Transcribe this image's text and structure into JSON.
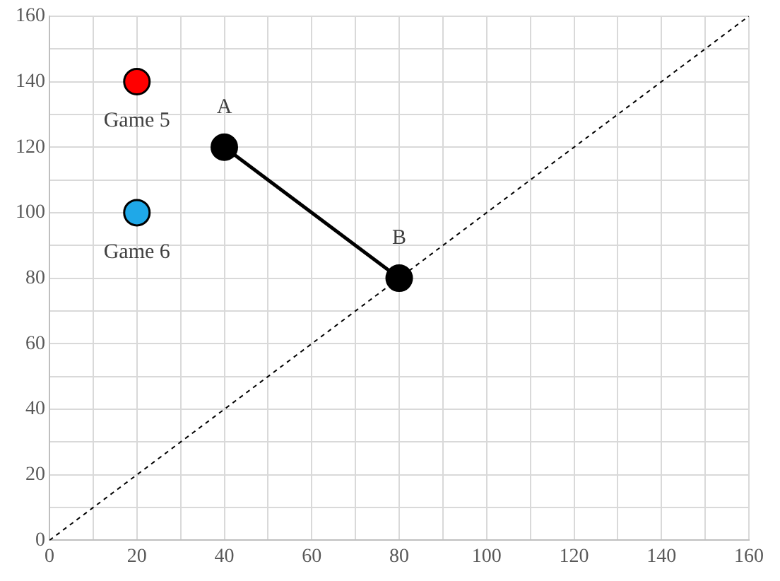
{
  "chart_data": {
    "type": "scatter",
    "xlim": [
      0,
      160
    ],
    "ylim": [
      0,
      160
    ],
    "xticks": [
      0,
      {
        "value": 10,
        "label": null
      },
      20,
      {
        "value": 30,
        "label": null
      },
      40,
      {
        "value": 50,
        "label": null
      },
      60,
      {
        "value": 70,
        "label": null
      },
      80,
      {
        "value": 90,
        "label": null
      },
      100,
      {
        "value": 110,
        "label": null
      },
      120,
      {
        "value": 130,
        "label": null
      },
      140,
      {
        "value": 150,
        "label": null
      },
      160
    ],
    "yticks": [
      0,
      {
        "value": 10,
        "label": null
      },
      20,
      {
        "value": 30,
        "label": null
      },
      40,
      {
        "value": 50,
        "label": null
      },
      60,
      {
        "value": 70,
        "label": null
      },
      80,
      {
        "value": 90,
        "label": null
      },
      100,
      {
        "value": 110,
        "label": null
      },
      120,
      {
        "value": 130,
        "label": null
      },
      140,
      {
        "value": 150,
        "label": null
      },
      160
    ],
    "grid": true,
    "legend": false,
    "series": [
      {
        "name": "Game 5",
        "color": "#ff0000",
        "x": [
          20
        ],
        "values": [
          140
        ],
        "marker": "circle"
      },
      {
        "name": "Game 6",
        "color": "#1fa8e8",
        "x": [
          20
        ],
        "values": [
          100
        ],
        "marker": "circle"
      },
      {
        "type": "line",
        "color": "#000000",
        "x": [
          40,
          80
        ],
        "values": [
          120,
          80
        ],
        "marker": "circle",
        "line_style": "solid"
      },
      {
        "type": "line",
        "color": "#000000",
        "x": [
          0,
          160
        ],
        "values": [
          0,
          160
        ],
        "marker": "none",
        "line_style": "dashed"
      }
    ],
    "annotations": [
      {
        "text": "A",
        "x": 40,
        "y": 120
      },
      {
        "text": "B",
        "x": 80,
        "y": 80
      }
    ]
  }
}
